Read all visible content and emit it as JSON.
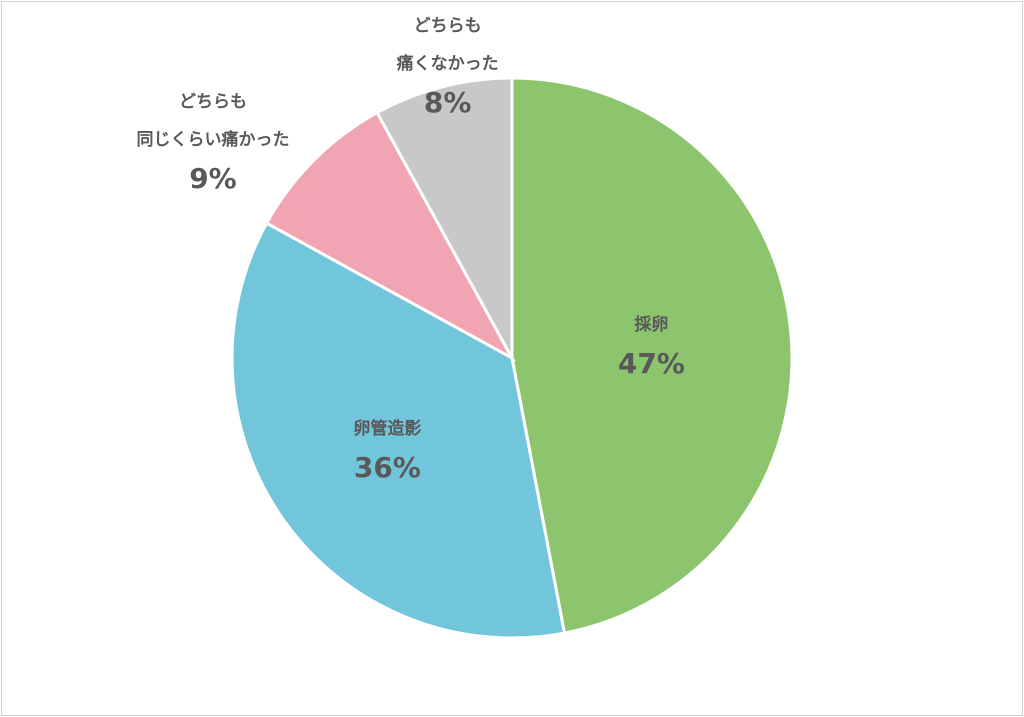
{
  "chart_data": {
    "type": "pie",
    "categories": [
      "採卵",
      "卵管造影",
      "どちらも\n同じくらい痛かった",
      "どちらも\n痛くなかった"
    ],
    "values": [
      47,
      36,
      9,
      8
    ],
    "value_labels": [
      "47%",
      "36%",
      "9%",
      "8%"
    ],
    "colors": [
      "#8dc56f",
      "#72c6dc",
      "#f1a5b2",
      "#c8c8c8"
    ]
  }
}
